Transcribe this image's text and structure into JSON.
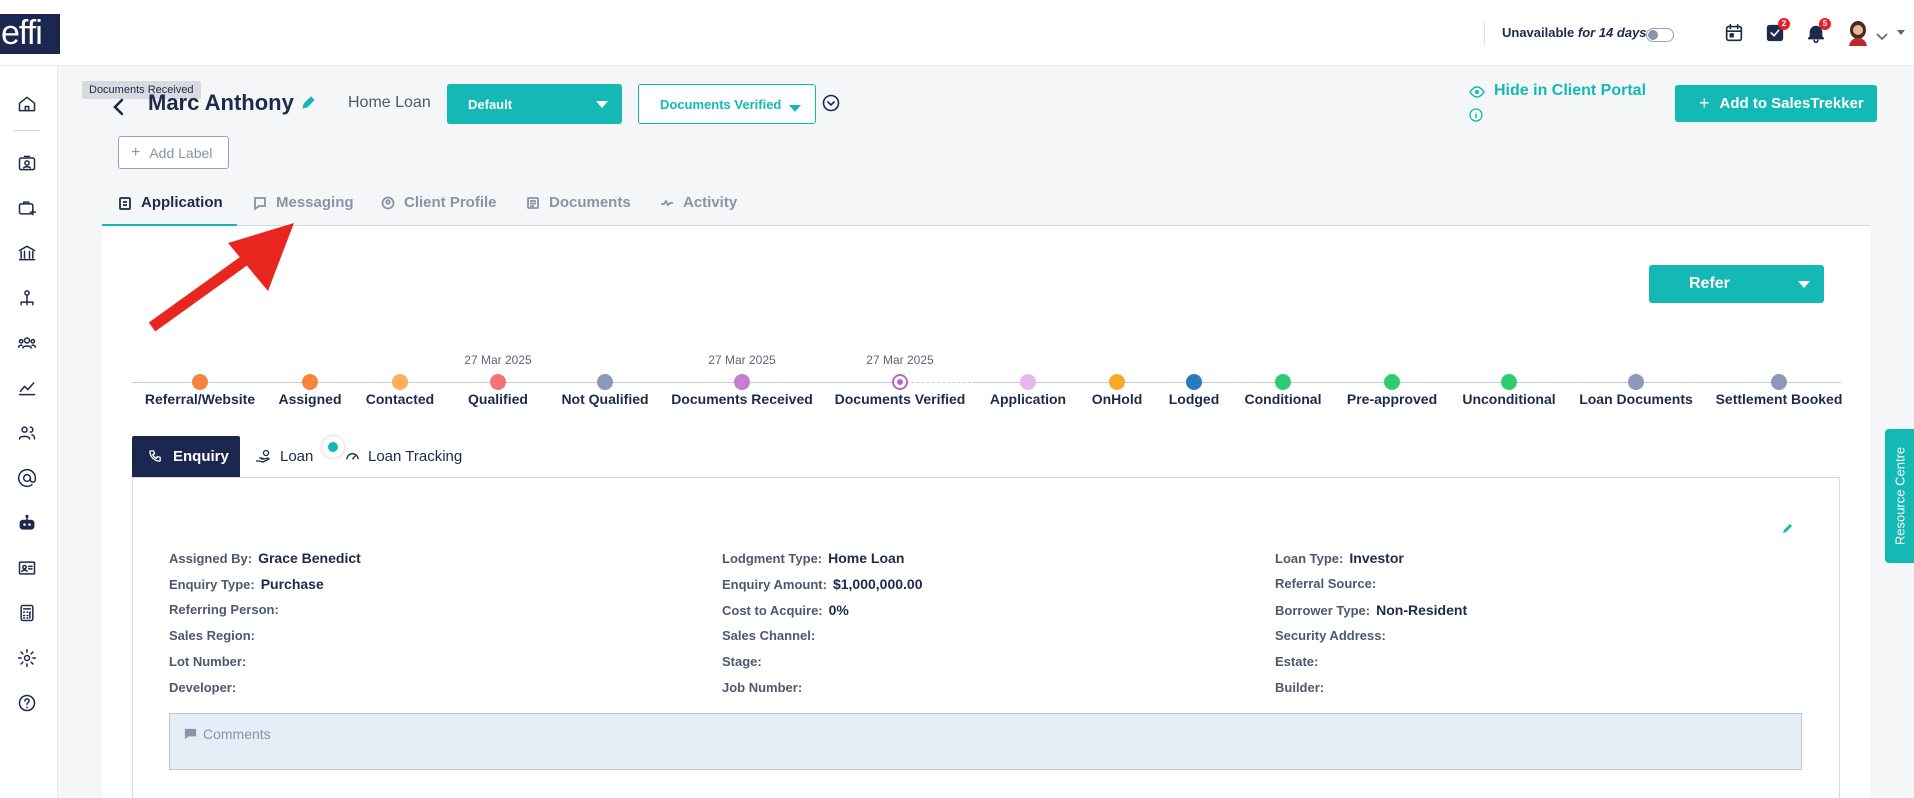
{
  "header": {
    "logo": "effi",
    "availability_label": "Unavailable",
    "availability_period": "for 14 days",
    "tasks_badge": "2",
    "notifications_badge": "5"
  },
  "tooltip": "Documents Received",
  "client": {
    "name": "Marc Anthony",
    "loan_type": "Home Loan"
  },
  "selects": {
    "pipeline": "Default",
    "status": "Documents Verified"
  },
  "actions": {
    "add_label": "Add Label",
    "hide_portal": "Hide in Client Portal",
    "add_salestrekker": "Add to SalesTrekker",
    "refer": "Refer"
  },
  "tabs": [
    "Application",
    "Messaging",
    "Client Profile",
    "Documents",
    "Activity"
  ],
  "stages": [
    {
      "label": "Referral/Website",
      "date": "",
      "color": "#f5853f"
    },
    {
      "label": "Assigned",
      "date": "",
      "color": "#f5853f"
    },
    {
      "label": "Contacted",
      "date": "",
      "color": "#fbb05b"
    },
    {
      "label": "Qualified",
      "date": "27 Mar 2025",
      "color": "#f47373"
    },
    {
      "label": "Not Qualified",
      "date": "",
      "color": "#8b98b8"
    },
    {
      "label": "Documents Received",
      "date": "27 Mar 2025",
      "color": "#c77cd1"
    },
    {
      "label": "Documents Verified",
      "date": "27 Mar 2025",
      "color": "#b768c4"
    },
    {
      "label": "Application",
      "date": "",
      "color": "#e6b8ec"
    },
    {
      "label": "OnHold",
      "date": "",
      "color": "#f7a928"
    },
    {
      "label": "Lodged",
      "date": "",
      "color": "#2a7ac2"
    },
    {
      "label": "Conditional",
      "date": "",
      "color": "#2ecc71"
    },
    {
      "label": "Pre-approved",
      "date": "",
      "color": "#2ecc71"
    },
    {
      "label": "Unconditional",
      "date": "",
      "color": "#2ecc71"
    },
    {
      "label": "Loan Documents",
      "date": "",
      "color": "#8b98b8"
    },
    {
      "label": "Settlement Booked",
      "date": "",
      "color": "#8b98b8"
    }
  ],
  "subtabs": [
    "Enquiry",
    "Loan",
    "Loan Tracking"
  ],
  "fields": {
    "col1": [
      [
        "Assigned By:",
        "Grace Benedict"
      ],
      [
        "Enquiry Type:",
        "Purchase"
      ],
      [
        "Referring Person:",
        ""
      ],
      [
        "Sales Region:",
        ""
      ],
      [
        "Lot Number:",
        ""
      ],
      [
        "Developer:",
        ""
      ]
    ],
    "col2": [
      [
        "Lodgment Type:",
        "Home Loan"
      ],
      [
        "Enquiry Amount:",
        "$1,000,000.00"
      ],
      [
        "Cost to Acquire:",
        "0%"
      ],
      [
        "Sales Channel:",
        ""
      ],
      [
        "Stage:",
        ""
      ],
      [
        "Job Number:",
        ""
      ]
    ],
    "col3": [
      [
        "Loan Type:",
        "Investor"
      ],
      [
        "Referral Source:",
        ""
      ],
      [
        "Borrower Type:",
        "Non-Resident"
      ],
      [
        "Security Address:",
        ""
      ],
      [
        "Estate:",
        ""
      ],
      [
        "Builder:",
        ""
      ]
    ]
  },
  "comments_label": "Comments",
  "resource_centre": "Resource Centre",
  "colors": {
    "teal": "#14b8b4",
    "navy": "#1c2750",
    "arrow": "#e8261f"
  }
}
